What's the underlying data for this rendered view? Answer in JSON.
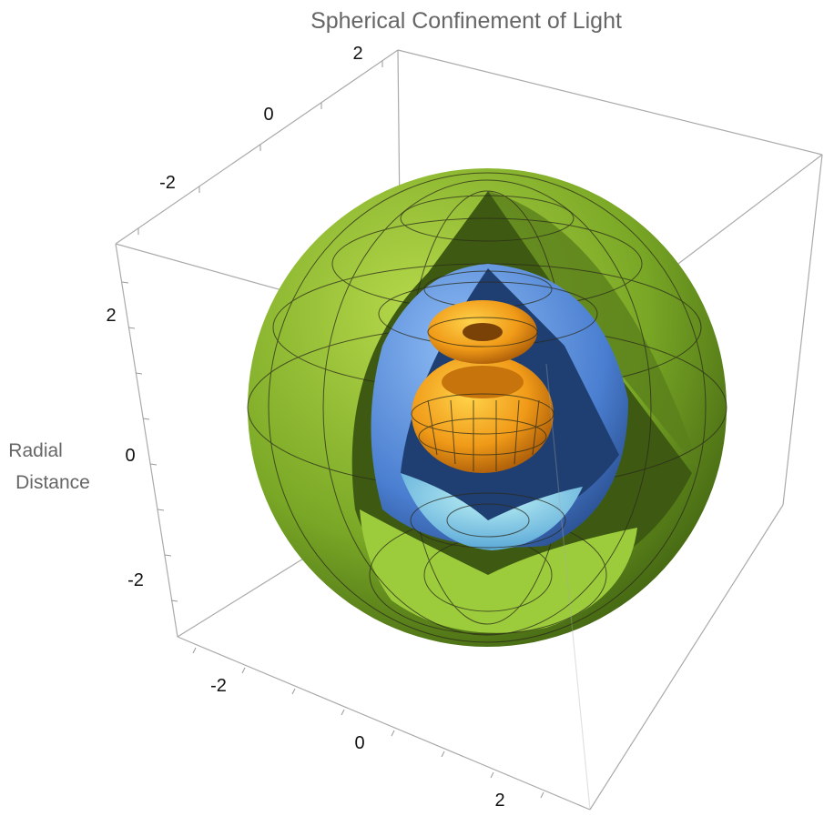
{
  "chart_data": {
    "type": "surface3d",
    "title": "Spherical Confinement of Light",
    "zlabel": "Radial Distance",
    "x_ticks": [
      "-2",
      "0",
      "2"
    ],
    "y_ticks": [
      "-2",
      "0",
      "2"
    ],
    "z_ticks": [
      "2",
      "0",
      "-2"
    ],
    "xlim": [
      -3,
      3
    ],
    "ylim": [
      -3,
      3
    ],
    "zlim": [
      -3,
      3
    ],
    "box": true,
    "surfaces": [
      {
        "shape": "outer sphere with octant cut away",
        "radius": 2.5,
        "color": "#7fae2a"
      },
      {
        "shape": "middle sphere with octant cut away",
        "radius": 1.5,
        "color": "#5b8fe0"
      },
      {
        "shape": "inner toroidal radiation pattern",
        "color": "#f0a020"
      }
    ]
  }
}
